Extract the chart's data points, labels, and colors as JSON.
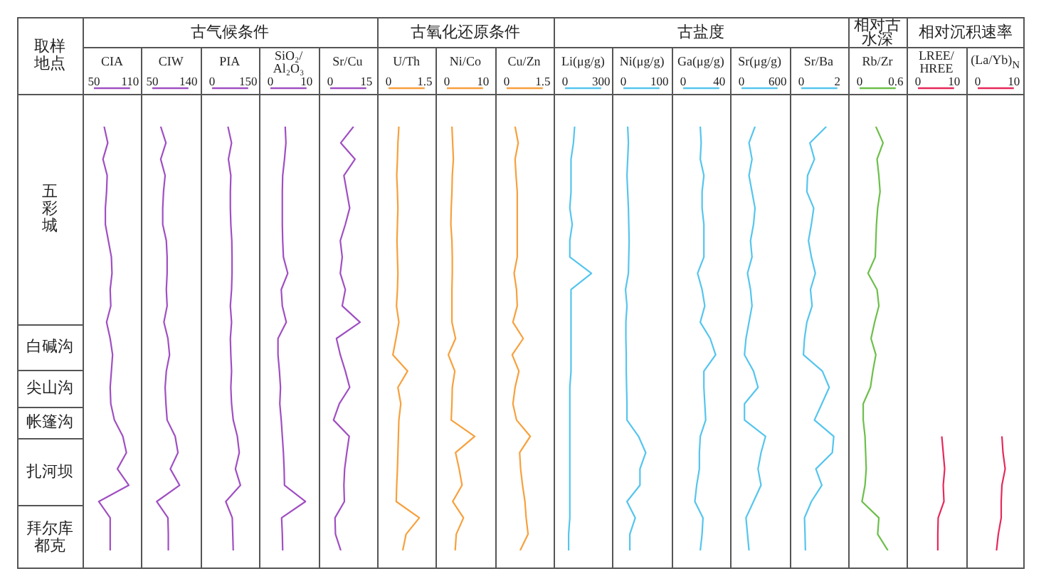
{
  "chart_data": [
    {
      "type": "other",
      "title": "取样地点",
      "annotations": [
        "五彩城",
        "白碱沟",
        "尖山沟",
        "帐篷沟",
        "扎河坝",
        "拜尔库都克"
      ]
    },
    {
      "type": "line",
      "orientation": "horizontal",
      "xlabel": "CIA",
      "color": "#a04fc2",
      "xlim": [
        50,
        110
      ],
      "xticks": [
        50,
        110
      ],
      "categories": [
        null,
        null,
        null,
        null,
        null,
        null,
        null,
        null,
        null,
        null,
        null,
        null,
        null,
        null,
        null,
        null,
        null,
        null,
        null,
        null,
        null,
        null,
        null,
        null,
        null,
        null,
        null
      ],
      "values": [
        67,
        73,
        65,
        72,
        71,
        69,
        69,
        74,
        79,
        80,
        77,
        78,
        71,
        77,
        81,
        79,
        77,
        78,
        84,
        98,
        104,
        89,
        108,
        58,
        77,
        77,
        77
      ]
    },
    {
      "type": "line",
      "orientation": "horizontal",
      "xlabel": "CIW",
      "color": "#a04fc2",
      "xlim": [
        50,
        140
      ],
      "xticks": [
        50,
        140
      ],
      "categories": [
        null,
        null,
        null,
        null,
        null,
        null,
        null,
        null,
        null,
        null,
        null,
        null,
        null,
        null,
        null,
        null,
        null,
        null,
        null,
        null,
        null,
        null,
        null,
        null,
        null,
        null,
        null
      ],
      "values": [
        71,
        84,
        71,
        82,
        78,
        76,
        76,
        85,
        87,
        87,
        85,
        87,
        79,
        89,
        93,
        85,
        82,
        84,
        87,
        107,
        114,
        95,
        118,
        61,
        89,
        90,
        90
      ]
    },
    {
      "type": "line",
      "orientation": "horizontal",
      "title": "古气候条件",
      "xlabel": "PIA",
      "color": "#a04fc2",
      "xlim": [
        0,
        150
      ],
      "xticks": [
        0,
        150
      ],
      "categories": [
        null,
        null,
        null,
        null,
        null,
        null,
        null,
        null,
        null,
        null,
        null,
        null,
        null,
        null,
        null,
        null,
        null,
        null,
        null,
        null,
        null,
        null,
        null,
        null,
        null,
        null,
        null
      ],
      "values": [
        66,
        81,
        68,
        78,
        76,
        76,
        78,
        82,
        83,
        83,
        81,
        76,
        81,
        76,
        78,
        81,
        78,
        81,
        88,
        105,
        113,
        97,
        118,
        57,
        84,
        86,
        88
      ]
    },
    {
      "type": "line",
      "orientation": "horizontal",
      "xlabel": "SiO₂/Al₂O₃",
      "color": "#a04fc2",
      "xlim": [
        0,
        10
      ],
      "xticks": [
        0,
        10
      ],
      "categories": [
        null,
        null,
        null,
        null,
        null,
        null,
        null,
        null,
        null,
        null,
        null,
        null,
        null,
        null,
        null,
        null,
        null,
        null,
        null,
        null,
        null,
        null,
        null,
        null,
        null,
        null,
        null
      ],
      "values": [
        4.1,
        4.3,
        3.9,
        3.4,
        3.3,
        3.3,
        3.3,
        3.4,
        3.6,
        4.8,
        3.0,
        3.3,
        4.4,
        2.1,
        2.1,
        2.5,
        2.8,
        2.6,
        3.0,
        3.3,
        3.6,
        3.8,
        3.9,
        9.7,
        3.1,
        3.3,
        3.4
      ]
    },
    {
      "type": "line",
      "orientation": "horizontal",
      "xlabel": "Sr/Cu",
      "color": "#a04fc2",
      "xlim": [
        0,
        15
      ],
      "xticks": [
        0,
        15
      ],
      "categories": [
        null,
        null,
        null,
        null,
        null,
        null,
        null,
        null,
        null,
        null,
        null,
        null,
        null,
        null,
        null,
        null,
        null,
        null,
        null,
        null,
        null,
        null,
        null,
        null,
        null,
        null,
        null
      ],
      "values": [
        9.7,
        4.4,
        10.3,
        5.7,
        6.9,
        8.1,
        6.3,
        4.2,
        5.0,
        4.2,
        6.3,
        5.0,
        12.4,
        2.6,
        4.2,
        6.3,
        8.1,
        3.8,
        1.4,
        7.9,
        6.9,
        6.0,
        5.7,
        5.9,
        2.0,
        2.2,
        4.4
      ]
    },
    {
      "type": "line",
      "orientation": "horizontal",
      "xlabel": "U/Th",
      "color": "#f7a03c",
      "xlim": [
        0,
        1.5
      ],
      "xticks": [
        0,
        1.5
      ],
      "categories": [
        null,
        null,
        null,
        null,
        null,
        null,
        null,
        null,
        null,
        null,
        null,
        null,
        null,
        null,
        null,
        null,
        null,
        null,
        null,
        null,
        null,
        null,
        null,
        null,
        null,
        null,
        null
      ],
      "values": [
        0.43,
        0.39,
        0.37,
        0.34,
        0.37,
        0.39,
        0.37,
        0.35,
        0.37,
        0.39,
        0.37,
        0.33,
        0.43,
        0.31,
        0.18,
        0.79,
        0.39,
        0.51,
        0.43,
        0.41,
        0.39,
        0.37,
        0.34,
        0.32,
        1.28,
        0.73,
        0.59
      ]
    },
    {
      "type": "line",
      "orientation": "horizontal",
      "title": "古氧化还原条件",
      "xlabel": "Ni/Co",
      "color": "#f7a03c",
      "xlim": [
        0,
        10
      ],
      "xticks": [
        0,
        10
      ],
      "categories": [
        null,
        null,
        null,
        null,
        null,
        null,
        null,
        null,
        null,
        null,
        null,
        null,
        null,
        null,
        null,
        null,
        null,
        null,
        null,
        null,
        null,
        null,
        null,
        null,
        null,
        null,
        null
      ],
      "values": [
        1.4,
        1.6,
        1.8,
        1.5,
        1.4,
        1.2,
        1.1,
        1.4,
        1.5,
        1.5,
        1.4,
        1.4,
        1.4,
        2.4,
        0.4,
        2.2,
        1.5,
        1.4,
        1.2,
        7.7,
        2.4,
        3.4,
        4.2,
        1.6,
        4.6,
        2.6,
        2.3
      ]
    },
    {
      "type": "line",
      "orientation": "horizontal",
      "xlabel": "Cu/Zn",
      "color": "#f7a03c",
      "xlim": [
        0,
        1.5
      ],
      "xticks": [
        0,
        1.5
      ],
      "categories": [
        null,
        null,
        null,
        null,
        null,
        null,
        null,
        null,
        null,
        null,
        null,
        null,
        null,
        null,
        null,
        null,
        null,
        null,
        null,
        null,
        null,
        null,
        null,
        null,
        null,
        null,
        null
      ],
      "values": [
        0.35,
        0.48,
        0.35,
        0.39,
        0.44,
        0.44,
        0.44,
        0.44,
        0.44,
        0.31,
        0.41,
        0.44,
        0.26,
        0.69,
        0.23,
        0.51,
        0.35,
        0.26,
        0.41,
        0.98,
        0.54,
        0.58,
        0.66,
        0.76,
        0.81,
        0.89,
        0.56
      ]
    },
    {
      "type": "line",
      "orientation": "horizontal",
      "xlabel": "Li(μg/g)",
      "color": "#55c5ee",
      "xlim": [
        0,
        300
      ],
      "xticks": [
        0,
        300
      ],
      "categories": [
        null,
        null,
        null,
        null,
        null,
        null,
        null,
        null,
        null,
        null,
        null,
        null,
        null,
        null,
        null,
        null,
        null,
        null,
        null,
        null,
        null,
        null,
        null,
        null,
        null,
        null,
        null
      ],
      "values": [
        80,
        70,
        50,
        50,
        50,
        40,
        60,
        40,
        40,
        220,
        50,
        50,
        50,
        50,
        50,
        50,
        40,
        40,
        40,
        40,
        40,
        40,
        40,
        40,
        40,
        30,
        30
      ]
    },
    {
      "type": "line",
      "orientation": "horizontal",
      "xlabel": "Ni(μg/g)",
      "color": "#55c5ee",
      "xlim": [
        0,
        100
      ],
      "xticks": [
        0,
        100
      ],
      "categories": [
        null,
        null,
        null,
        null,
        null,
        null,
        null,
        null,
        null,
        null,
        null,
        null,
        null,
        null,
        null,
        null,
        null,
        null,
        null,
        null,
        null,
        null,
        null,
        null,
        null,
        null,
        null
      ],
      "values": [
        12,
        14,
        12,
        10,
        12,
        14,
        15,
        16,
        15,
        14,
        6,
        10,
        7,
        7,
        8,
        8,
        9,
        10,
        10,
        42,
        62,
        46,
        46,
        10,
        33,
        18,
        18
      ]
    },
    {
      "type": "line",
      "orientation": "horizontal",
      "title": "古盐度",
      "xlabel": "Ga(μg/g)",
      "color": "#55c5ee",
      "xlim": [
        0,
        40
      ],
      "xticks": [
        0,
        40
      ],
      "categories": [
        null,
        null,
        null,
        null,
        null,
        null,
        null,
        null,
        null,
        null,
        null,
        null,
        null,
        null,
        null,
        null,
        null,
        null,
        null,
        null,
        null,
        null,
        null,
        null,
        null,
        null,
        null
      ],
      "values": [
        19,
        20,
        19,
        23,
        21,
        21,
        23,
        23,
        23,
        16,
        21,
        24,
        19,
        30,
        36,
        23,
        23,
        24,
        25,
        19,
        18,
        18,
        15,
        13,
        22,
        21,
        19
      ]
    },
    {
      "type": "line",
      "orientation": "horizontal",
      "xlabel": "Sr(μg/g)",
      "color": "#55c5ee",
      "xlim": [
        0,
        600
      ],
      "xticks": [
        0,
        600
      ],
      "categories": [
        null,
        null,
        null,
        null,
        null,
        null,
        null,
        null,
        null,
        null,
        null,
        null,
        null,
        null,
        null,
        null,
        null,
        null,
        null,
        null,
        null,
        null,
        null,
        null,
        null,
        null,
        null
      ],
      "values": [
        225,
        125,
        175,
        125,
        175,
        225,
        200,
        150,
        175,
        100,
        150,
        175,
        125,
        75,
        50,
        200,
        275,
        50,
        50,
        400,
        325,
        275,
        325,
        200,
        75,
        100,
        125
      ]
    },
    {
      "type": "line",
      "orientation": "horizontal",
      "xlabel": "Sr/Ba",
      "color": "#55c5ee",
      "xlim": [
        0,
        2
      ],
      "xticks": [
        0,
        2
      ],
      "categories": [
        null,
        null,
        null,
        null,
        null,
        null,
        null,
        null,
        null,
        null,
        null,
        null,
        null,
        null,
        null,
        null,
        null,
        null,
        null,
        null,
        null,
        null,
        null,
        null,
        null,
        null,
        null
      ],
      "values": [
        1.39,
        0.48,
        0.73,
        0.35,
        0.31,
        0.69,
        0.56,
        0.4,
        0.56,
        0.78,
        0.51,
        0.6,
        0.31,
        0.18,
        0.12,
        1.17,
        1.55,
        1.14,
        0.73,
        1.8,
        1.72,
        0.81,
        1.14,
        0.56,
        0.18,
        0.21,
        0.23
      ]
    },
    {
      "type": "line",
      "orientation": "horizontal",
      "title": "相对古水深",
      "xlabel": "Rb/Zr",
      "color": "#6cbf4a",
      "xlim": [
        0,
        0.6
      ],
      "xticks": [
        0,
        0.6
      ],
      "categories": [
        null,
        null,
        null,
        null,
        null,
        null,
        null,
        null,
        null,
        null,
        null,
        null,
        null,
        null,
        null,
        null,
        null,
        null,
        null,
        null,
        null,
        null,
        null,
        null,
        null,
        null,
        null
      ],
      "values": [
        0.27,
        0.39,
        0.29,
        0.32,
        0.34,
        0.3,
        0.28,
        0.27,
        0.26,
        0.14,
        0.29,
        0.32,
        0.25,
        0.19,
        0.27,
        0.22,
        0.18,
        0.06,
        0.06,
        0.09,
        0.1,
        0.11,
        0.09,
        0.04,
        0.32,
        0.3,
        0.47
      ]
    },
    {
      "type": "line",
      "orientation": "horizontal",
      "title": "相对沉积速率",
      "xlabel": "LREE/HREE",
      "color": "#e6295a",
      "xlim": [
        0,
        10
      ],
      "xticks": [
        0,
        10
      ],
      "categories": [
        null,
        null,
        null,
        null,
        null,
        null,
        null,
        null,
        null,
        null,
        null,
        null,
        null,
        null,
        null,
        null,
        null,
        null,
        null,
        null,
        null,
        null,
        null,
        null,
        null,
        null,
        null
      ],
      "values": [
        null,
        null,
        null,
        null,
        null,
        null,
        null,
        null,
        null,
        null,
        null,
        null,
        null,
        null,
        null,
        null,
        null,
        null,
        null,
        6.6,
        7.0,
        7.4,
        7.0,
        7.2,
        5.6,
        5.5,
        5.5
      ]
    },
    {
      "type": "line",
      "orientation": "horizontal",
      "xlabel": "(La/Yb)$_{N}$",
      "color": "#e6295a",
      "xlim": [
        0,
        10
      ],
      "xticks": [
        0,
        10
      ],
      "categories": [
        null,
        null,
        null,
        null,
        null,
        null,
        null,
        null,
        null,
        null,
        null,
        null,
        null,
        null,
        null,
        null,
        null,
        null,
        null,
        null,
        null,
        null,
        null,
        null,
        null,
        null,
        null
      ],
      "values": [
        null,
        null,
        null,
        null,
        null,
        null,
        null,
        null,
        null,
        null,
        null,
        null,
        null,
        null,
        null,
        null,
        null,
        null,
        null,
        6.7,
        7.0,
        7.6,
        6.7,
        6.5,
        6.5,
        5.7,
        5.2
      ]
    }
  ]
}
